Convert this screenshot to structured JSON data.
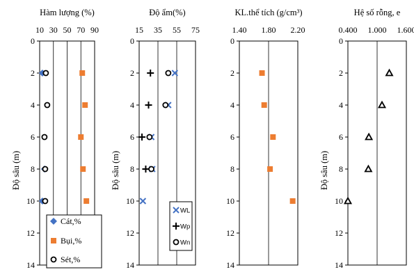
{
  "colors": {
    "cat": "#4472c4",
    "bui": "#ed7d31",
    "set": "#000000",
    "wl": "#4472c4",
    "wp": "#000000",
    "wn": "#000000",
    "kl": "#ed7d31",
    "e": "#000000"
  },
  "chart_data": [
    {
      "type": "scatter",
      "title": "Hàm lượng (%)",
      "ylabel": "Độ sâu (m)",
      "xlim": [
        10,
        90
      ],
      "xticks": [
        "10",
        "30",
        "50",
        "70",
        "90"
      ],
      "ylim": [
        0,
        14
      ],
      "yticks": [
        "0",
        "2",
        "4",
        "6",
        "8",
        "10",
        "12",
        "14"
      ],
      "grid": "vertical",
      "legend": "bottom-left",
      "series": [
        {
          "key": "cat",
          "name": "Cát,%",
          "marker": "diamond",
          "color_key": "cat",
          "points": [
            [
              14,
              2
            ],
            [
              17,
              8
            ],
            [
              14,
              10
            ]
          ]
        },
        {
          "key": "bui",
          "name": "Bụi,%",
          "marker": "square",
          "color_key": "bui",
          "points": [
            [
              72,
              2
            ],
            [
              76,
              4
            ],
            [
              70,
              6
            ],
            [
              73,
              8
            ],
            [
              78,
              10
            ]
          ]
        },
        {
          "key": "set",
          "name": "Sét,%",
          "marker": "circle",
          "color_key": "set",
          "points": [
            [
              19,
              2
            ],
            [
              21,
              4
            ],
            [
              17,
              6
            ],
            [
              18,
              8
            ],
            [
              18,
              10
            ]
          ]
        }
      ]
    },
    {
      "type": "scatter",
      "title": "Độ ẩm(%)",
      "ylabel": "Độ sâu (m)",
      "xlim": [
        15,
        75
      ],
      "xticks": [
        "15",
        "35",
        "55",
        "75"
      ],
      "ylim": [
        0,
        14
      ],
      "yticks": [
        "0",
        "2",
        "4",
        "6",
        "8",
        "10",
        "12",
        "14"
      ],
      "grid": "vertical",
      "legend": "bottom-right",
      "series": [
        {
          "key": "wl",
          "name": "WL",
          "marker": "x",
          "color_key": "wl",
          "points": [
            [
              53,
              2
            ],
            [
              46,
              4
            ],
            [
              28,
              6
            ],
            [
              29,
              8
            ],
            [
              19,
              10
            ]
          ]
        },
        {
          "key": "wp",
          "name": "Wp",
          "marker": "plus",
          "color_key": "wp",
          "points": [
            [
              27,
              2
            ],
            [
              25,
              4
            ],
            [
              18,
              6
            ],
            [
              22,
              8
            ]
          ]
        },
        {
          "key": "wn",
          "name": "Wn",
          "marker": "circle",
          "color_key": "wn",
          "points": [
            [
              46,
              2
            ],
            [
              43,
              4
            ],
            [
              26,
              6
            ],
            [
              28,
              8
            ]
          ]
        }
      ]
    },
    {
      "type": "scatter",
      "title": "KL.thể tích (g/cm³)",
      "xlim": [
        1.4,
        2.2
      ],
      "xticks": [
        "1.40",
        "1.80",
        "2.20"
      ],
      "ylim": [
        0,
        14
      ],
      "yticks": [
        "0",
        "2",
        "4",
        "6",
        "8",
        "10",
        "12",
        "14"
      ],
      "grid": "vertical",
      "series": [
        {
          "key": "kl",
          "marker": "square",
          "color_key": "kl",
          "points": [
            [
              1.71,
              2
            ],
            [
              1.74,
              4
            ],
            [
              1.86,
              6
            ],
            [
              1.82,
              8
            ],
            [
              2.13,
              10
            ]
          ]
        }
      ]
    },
    {
      "type": "scatter",
      "title": "Hệ số rỗng, e",
      "ylabel": "Độ sâu (m)",
      "xlim": [
        0.4,
        1.6
      ],
      "xticks": [
        "0.400",
        "1.000",
        "1.600"
      ],
      "ylim": [
        0,
        14
      ],
      "yticks": [
        "0",
        "2",
        "4",
        "6",
        "8",
        "10",
        "12",
        "14"
      ],
      "grid": "vertical",
      "series": [
        {
          "key": "e",
          "marker": "triangle",
          "color_key": "e",
          "points": [
            [
              1.25,
              2
            ],
            [
              1.1,
              4
            ],
            [
              0.83,
              6
            ],
            [
              0.82,
              8
            ],
            [
              0.4,
              10
            ]
          ]
        }
      ]
    }
  ]
}
